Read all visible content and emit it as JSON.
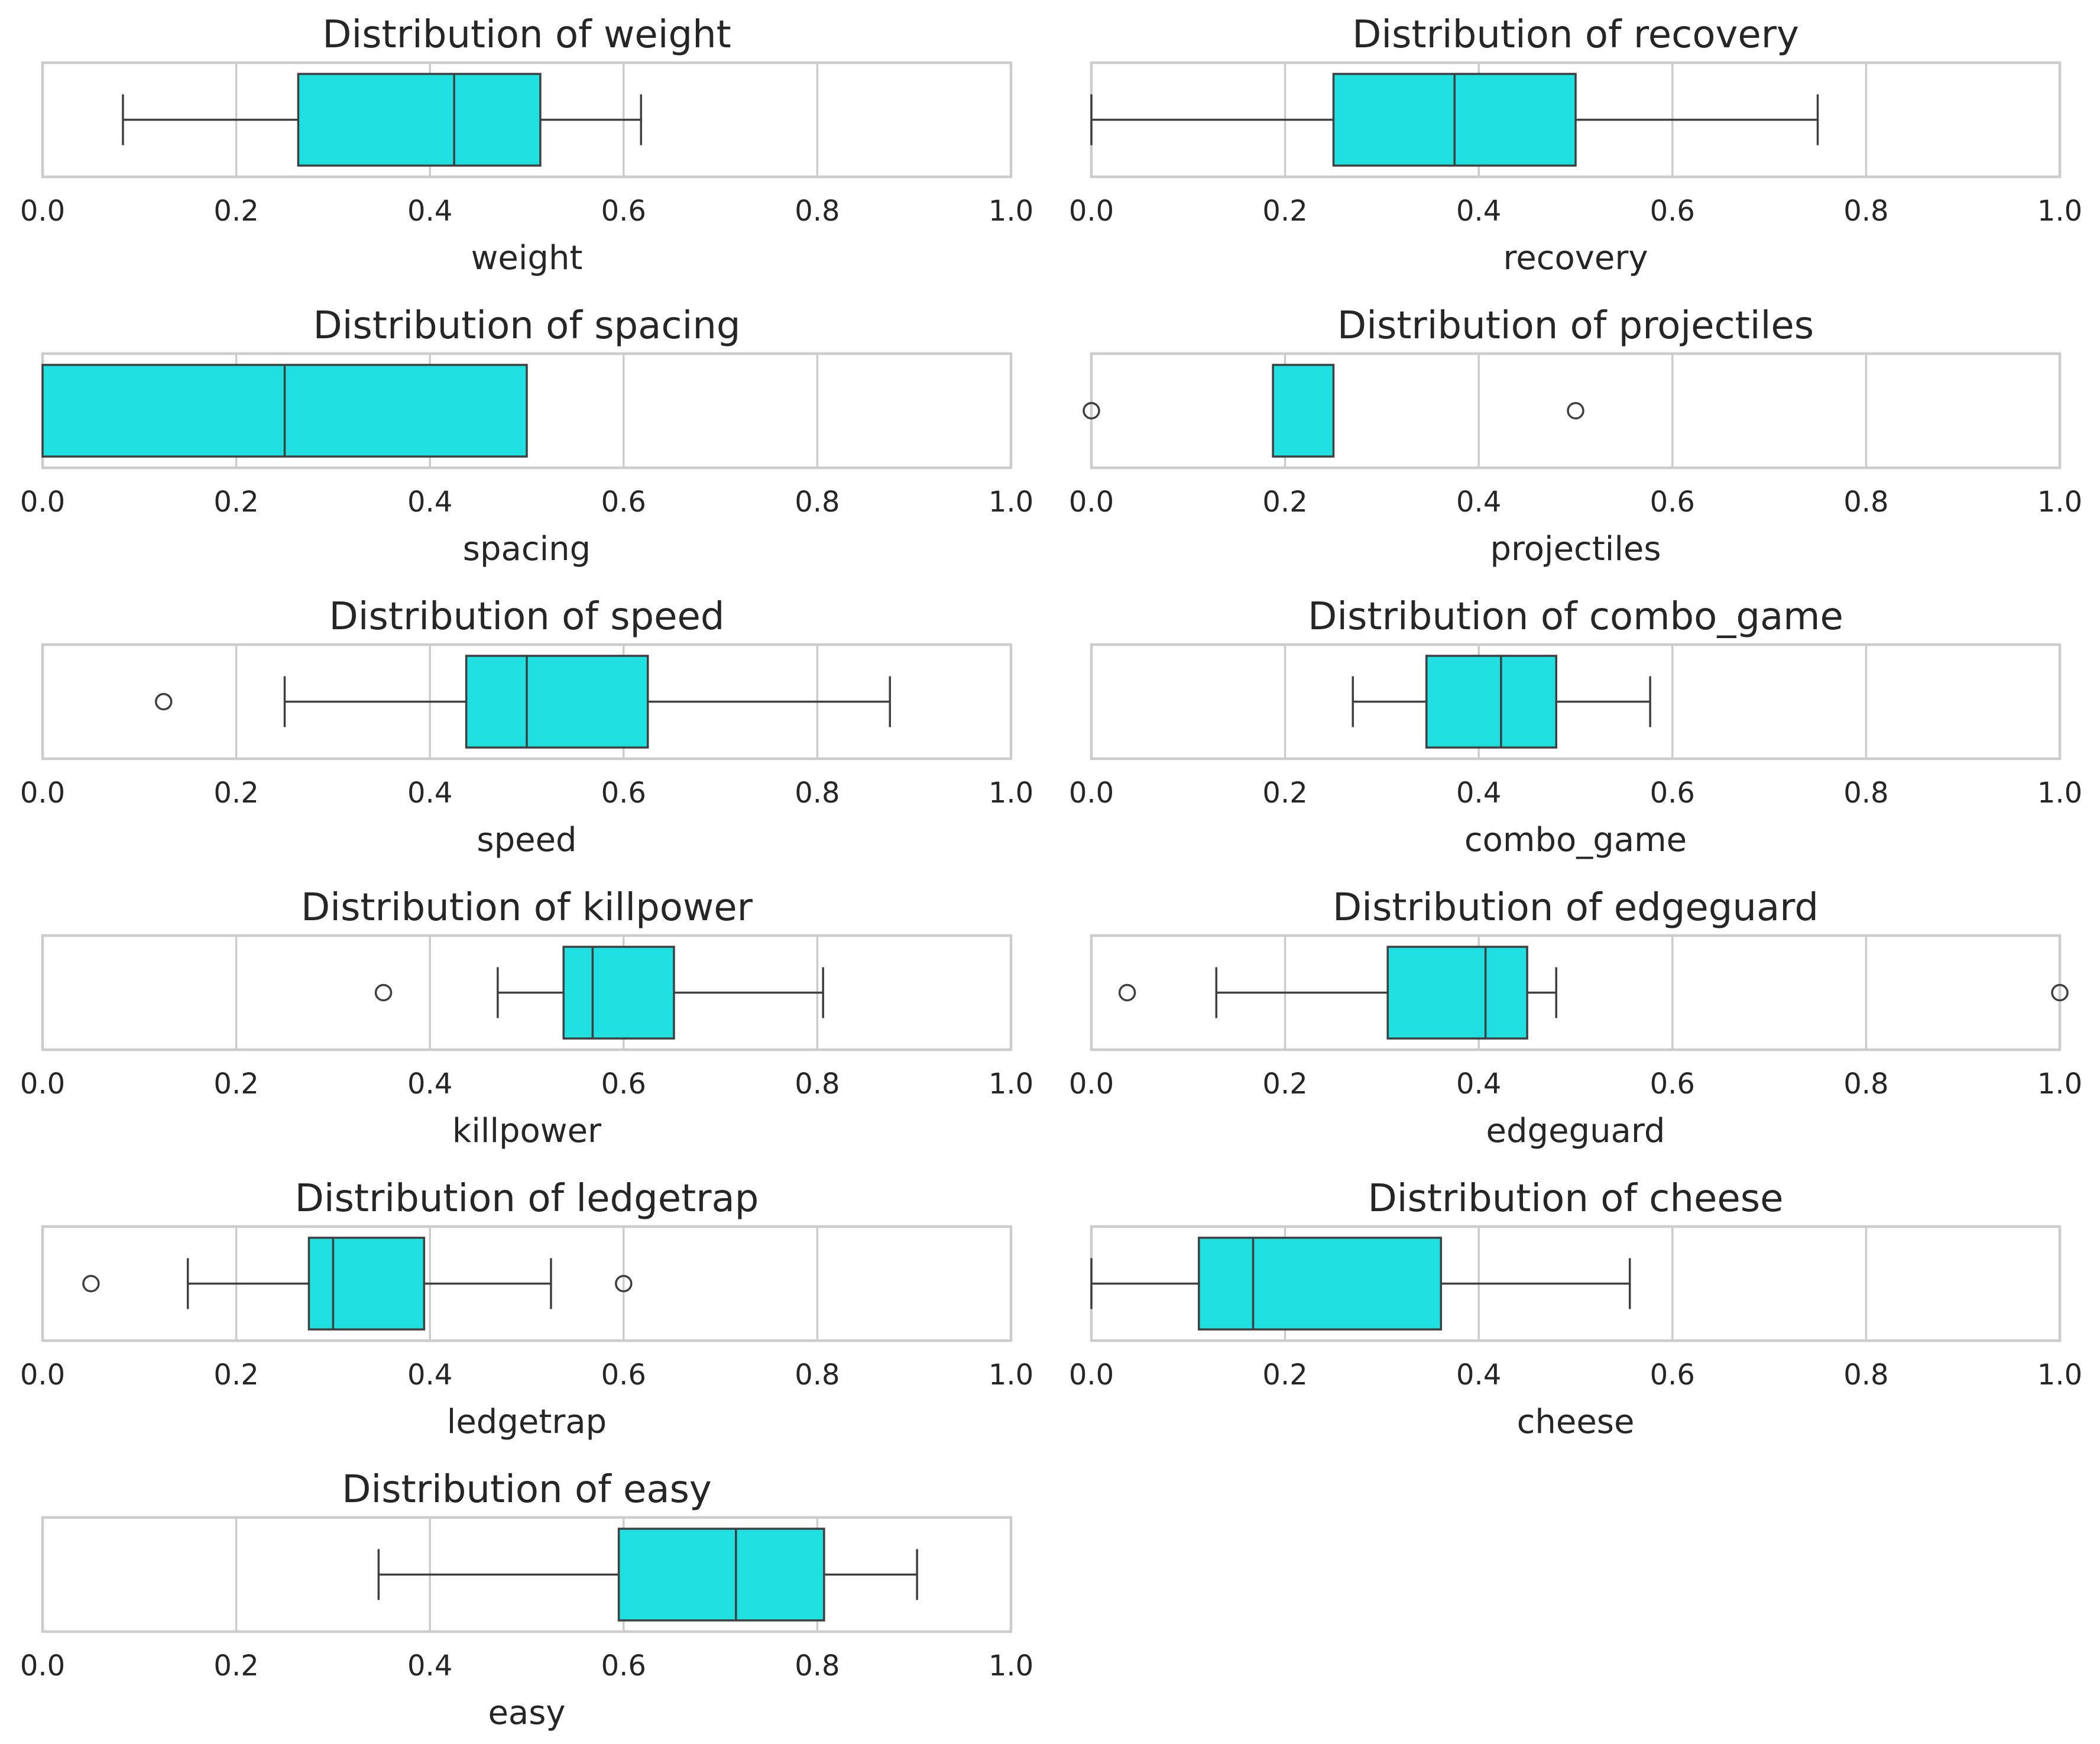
{
  "chart_data": [
    {
      "type": "box",
      "title": "Distribution of weight",
      "xlabel": "weight",
      "xlim": [
        0,
        1
      ],
      "xticks": [
        "0.0",
        "0.2",
        "0.4",
        "0.6",
        "0.8",
        "1.0"
      ],
      "whisker_low": 0.083,
      "q1": 0.264,
      "median": 0.425,
      "q3": 0.514,
      "whisker_high": 0.618,
      "outliers": []
    },
    {
      "type": "box",
      "title": "Distribution of recovery",
      "xlabel": "recovery",
      "xlim": [
        0,
        1
      ],
      "xticks": [
        "0.0",
        "0.2",
        "0.4",
        "0.6",
        "0.8",
        "1.0"
      ],
      "whisker_low": 0.0,
      "q1": 0.25,
      "median": 0.375,
      "q3": 0.5,
      "whisker_high": 0.75,
      "outliers": []
    },
    {
      "type": "box",
      "title": "Distribution of spacing",
      "xlabel": "spacing",
      "xlim": [
        0,
        1
      ],
      "xticks": [
        "0.0",
        "0.2",
        "0.4",
        "0.6",
        "0.8",
        "1.0"
      ],
      "whisker_low": 0.0,
      "q1": 0.0,
      "median": 0.25,
      "q3": 0.5,
      "whisker_high": 0.5,
      "outliers": []
    },
    {
      "type": "box",
      "title": "Distribution of projectiles",
      "xlabel": "projectiles",
      "xlim": [
        0,
        1
      ],
      "xticks": [
        "0.0",
        "0.2",
        "0.4",
        "0.6",
        "0.8",
        "1.0"
      ],
      "whisker_low": 0.1875,
      "q1": 0.1875,
      "median": 0.25,
      "q3": 0.25,
      "whisker_high": 0.25,
      "outliers": [
        0.0,
        0.5
      ]
    },
    {
      "type": "box",
      "title": "Distribution of speed",
      "xlabel": "speed",
      "xlim": [
        0,
        1
      ],
      "xticks": [
        "0.0",
        "0.2",
        "0.4",
        "0.6",
        "0.8",
        "1.0"
      ],
      "whisker_low": 0.25,
      "q1": 0.4375,
      "median": 0.5,
      "q3": 0.625,
      "whisker_high": 0.875,
      "outliers": [
        0.125
      ]
    },
    {
      "type": "box",
      "title": "Distribution of combo_game",
      "xlabel": "combo_game",
      "xlim": [
        0,
        1
      ],
      "xticks": [
        "0.0",
        "0.2",
        "0.4",
        "0.6",
        "0.8",
        "1.0"
      ],
      "whisker_low": 0.27,
      "q1": 0.346,
      "median": 0.423,
      "q3": 0.48,
      "whisker_high": 0.577,
      "outliers": []
    },
    {
      "type": "box",
      "title": "Distribution of killpower",
      "xlabel": "killpower",
      "xlim": [
        0,
        1
      ],
      "xticks": [
        "0.0",
        "0.2",
        "0.4",
        "0.6",
        "0.8",
        "1.0"
      ],
      "whisker_low": 0.47,
      "q1": 0.538,
      "median": 0.568,
      "q3": 0.652,
      "whisker_high": 0.806,
      "outliers": [
        0.352
      ]
    },
    {
      "type": "box",
      "title": "Distribution of edgeguard",
      "xlabel": "edgeguard",
      "xlim": [
        0,
        1
      ],
      "xticks": [
        "0.0",
        "0.2",
        "0.4",
        "0.6",
        "0.8",
        "1.0"
      ],
      "whisker_low": 0.129,
      "q1": 0.306,
      "median": 0.407,
      "q3": 0.45,
      "whisker_high": 0.48,
      "outliers": [
        0.037,
        1.0
      ]
    },
    {
      "type": "box",
      "title": "Distribution of ledgetrap",
      "xlabel": "ledgetrap",
      "xlim": [
        0,
        1
      ],
      "xticks": [
        "0.0",
        "0.2",
        "0.4",
        "0.6",
        "0.8",
        "1.0"
      ],
      "whisker_low": 0.15,
      "q1": 0.275,
      "median": 0.3,
      "q3": 0.394,
      "whisker_high": 0.525,
      "outliers": [
        0.05,
        0.6
      ]
    },
    {
      "type": "box",
      "title": "Distribution of cheese",
      "xlabel": "cheese",
      "xlim": [
        0,
        1
      ],
      "xticks": [
        "0.0",
        "0.2",
        "0.4",
        "0.6",
        "0.8",
        "1.0"
      ],
      "whisker_low": 0.0,
      "q1": 0.111,
      "median": 0.167,
      "q3": 0.361,
      "whisker_high": 0.556,
      "outliers": []
    },
    {
      "type": "box",
      "title": "Distribution of easy",
      "xlabel": "easy",
      "xlim": [
        0,
        1
      ],
      "xticks": [
        "0.0",
        "0.2",
        "0.4",
        "0.6",
        "0.8",
        "1.0"
      ],
      "whisker_low": 0.347,
      "q1": 0.595,
      "median": 0.716,
      "q3": 0.807,
      "whisker_high": 0.903,
      "outliers": []
    }
  ],
  "colors": {
    "box_fill": "#1fe0e0",
    "line": "#3f3f3f",
    "grid": "#cccccc"
  }
}
